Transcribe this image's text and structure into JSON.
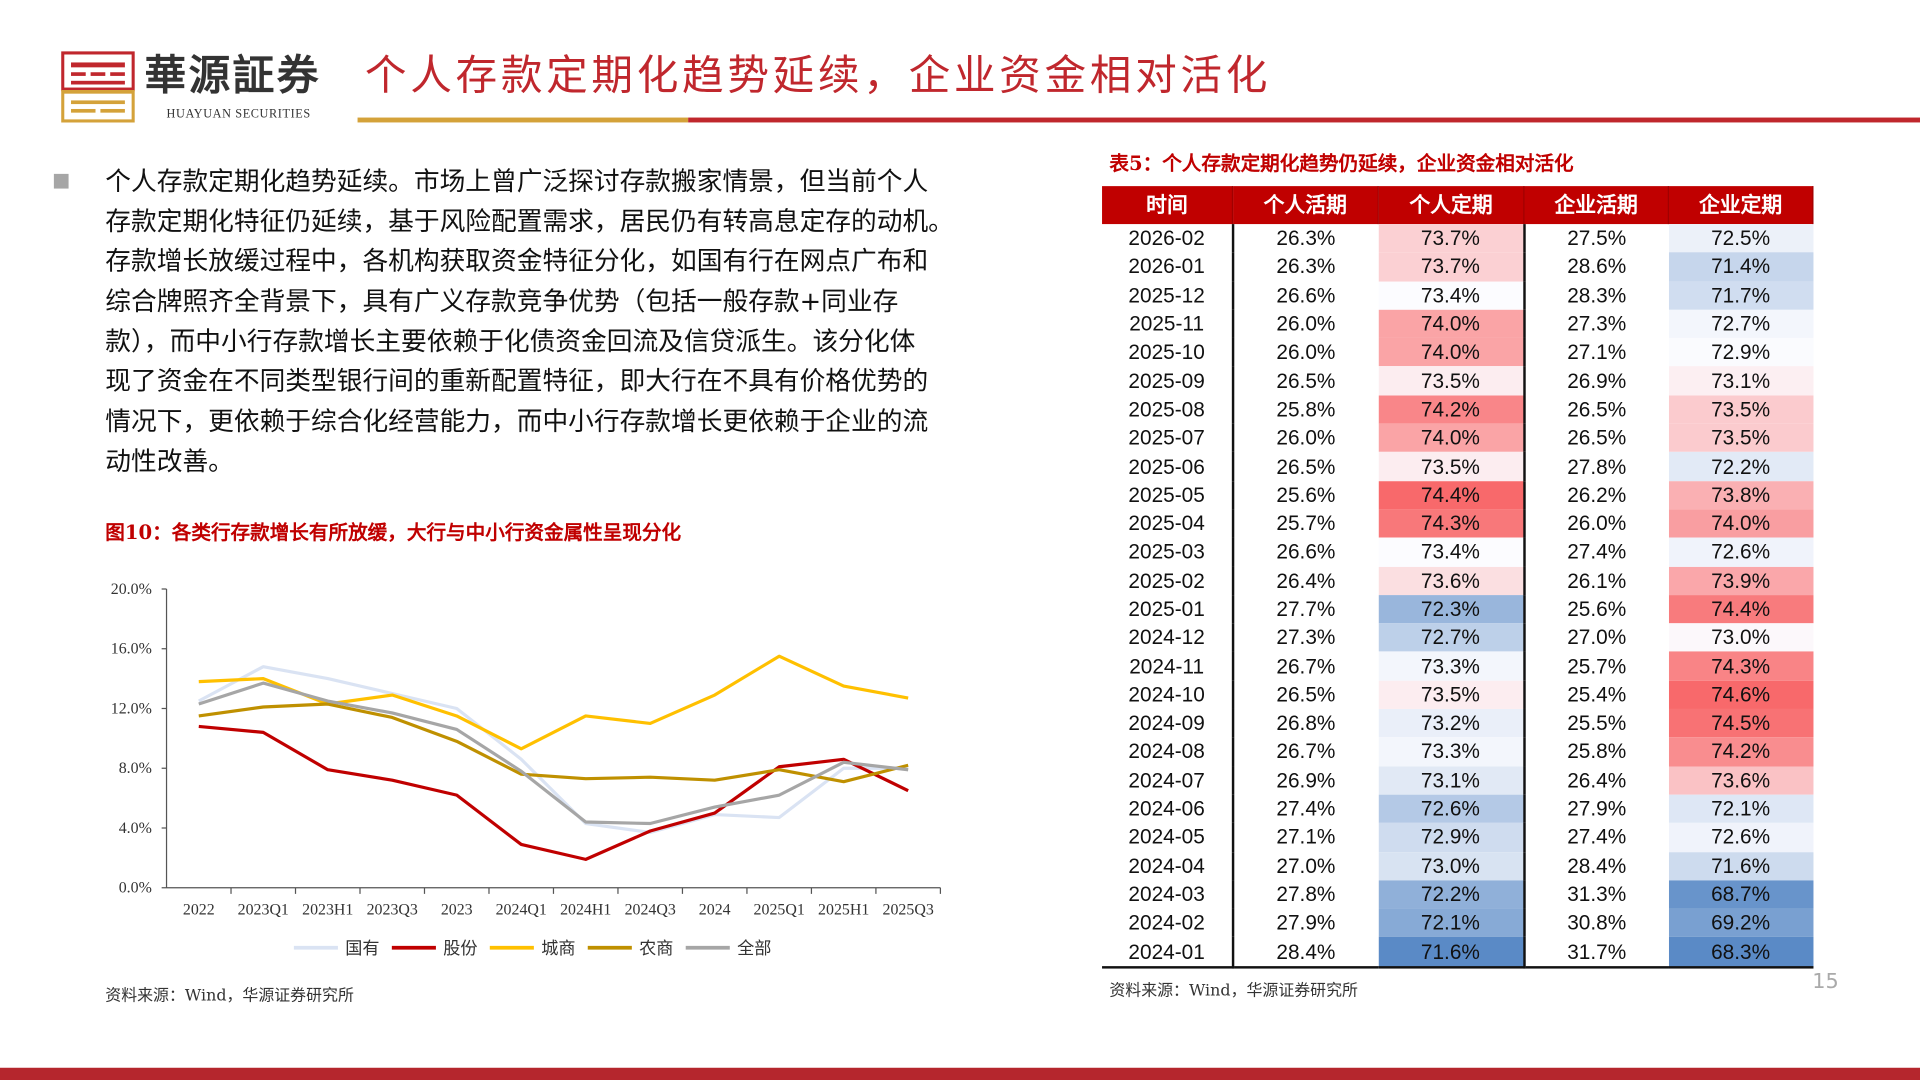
{
  "header": {
    "brand_cn": "華源証券",
    "brand_en": "HUAYUAN SECURITIES",
    "title": "个人存款定期化趋势延续，企业资金相对活化",
    "colors": {
      "brand_red": "#c0272d",
      "brand_gold": "#d4a23a"
    }
  },
  "body": {
    "lines": [
      "个人存款定期化趋势延续。市场上曾广泛探讨存款搬家情景，但当前个人",
      "存款定期化特征仍延续，基于风险配置需求，居民仍有转高息定存的动机。",
      "存款增长放缓过程中，各机构获取资金特征分化，如国有行在网点广布和",
      "综合牌照齐全背景下，具有广义存款竞争优势（包括一般存款+同业存",
      "款），而中小行存款增长主要依赖于化债资金回流及信贷派生。该分化体",
      "现了资金在不同类型银行间的重新配置特征，即大行在不具有价格优势的",
      "情况下，更依赖于综合化经营能力，而中小行存款增长更依赖于企业的流",
      "动性改善。"
    ]
  },
  "figure": {
    "title": "图10：各类行存款增长有所放缓，大行与中小行资金属性呈现分化",
    "source": "资料来源：Wind，华源证券研究所"
  },
  "chart_data": {
    "type": "line",
    "categories": [
      "2022",
      "2023Q1",
      "2023H1",
      "2023Q3",
      "2023",
      "2024Q1",
      "2024H1",
      "2024Q3",
      "2024",
      "2025Q1",
      "2025H1",
      "2025Q3"
    ],
    "ylim": [
      0,
      20
    ],
    "yticks": [
      "0.0%",
      "4.0%",
      "8.0%",
      "12.0%",
      "16.0%",
      "20.0%"
    ],
    "grid": false,
    "legend": "bottom",
    "series": [
      {
        "name": "国有",
        "color": "#dae3f3",
        "values": [
          12.5,
          14.8,
          14.0,
          13.0,
          12.0,
          8.6,
          4.3,
          3.7,
          4.9,
          4.7,
          8.0,
          8.0
        ]
      },
      {
        "name": "股份",
        "color": "#c00000",
        "values": [
          10.8,
          10.4,
          7.9,
          7.2,
          6.2,
          2.9,
          1.9,
          3.8,
          5.0,
          8.1,
          8.6,
          6.5
        ]
      },
      {
        "name": "城商",
        "color": "#ffc000",
        "values": [
          13.8,
          14.0,
          12.3,
          12.9,
          11.5,
          9.3,
          11.5,
          11.0,
          12.9,
          15.5,
          13.5,
          12.7
        ]
      },
      {
        "name": "农商",
        "color": "#bf9000",
        "values": [
          11.5,
          12.1,
          12.3,
          11.4,
          9.8,
          7.6,
          7.3,
          7.4,
          7.2,
          7.9,
          7.1,
          8.2
        ]
      },
      {
        "name": "全部",
        "color": "#a6a6a6",
        "values": [
          12.3,
          13.7,
          12.5,
          11.7,
          10.6,
          7.8,
          4.4,
          4.3,
          5.4,
          6.2,
          8.4,
          7.9
        ]
      }
    ]
  },
  "table": {
    "title": "表5：个人存款定期化趋势仍延续，企业资金相对活化",
    "headers": [
      "时间",
      "个人活期",
      "个人定期",
      "企业活期",
      "企业定期"
    ],
    "heat_colors": {
      "high": "#f8696b",
      "mid": "#fcfcff",
      "low": "#5a8ac6"
    },
    "rows": [
      [
        "2026-02",
        "26.3%",
        "73.7%",
        "27.5%",
        "72.5%"
      ],
      [
        "2026-01",
        "26.3%",
        "73.7%",
        "28.6%",
        "71.4%"
      ],
      [
        "2025-12",
        "26.6%",
        "73.4%",
        "28.3%",
        "71.7%"
      ],
      [
        "2025-11",
        "26.0%",
        "74.0%",
        "27.3%",
        "72.7%"
      ],
      [
        "2025-10",
        "26.0%",
        "74.0%",
        "27.1%",
        "72.9%"
      ],
      [
        "2025-09",
        "26.5%",
        "73.5%",
        "26.9%",
        "73.1%"
      ],
      [
        "2025-08",
        "25.8%",
        "74.2%",
        "26.5%",
        "73.5%"
      ],
      [
        "2025-07",
        "26.0%",
        "74.0%",
        "26.5%",
        "73.5%"
      ],
      [
        "2025-06",
        "26.5%",
        "73.5%",
        "27.8%",
        "72.2%"
      ],
      [
        "2025-05",
        "25.6%",
        "74.4%",
        "26.2%",
        "73.8%"
      ],
      [
        "2025-04",
        "25.7%",
        "74.3%",
        "26.0%",
        "74.0%"
      ],
      [
        "2025-03",
        "26.6%",
        "73.4%",
        "27.4%",
        "72.6%"
      ],
      [
        "2025-02",
        "26.4%",
        "73.6%",
        "26.1%",
        "73.9%"
      ],
      [
        "2025-01",
        "27.7%",
        "72.3%",
        "25.6%",
        "74.4%"
      ],
      [
        "2024-12",
        "27.3%",
        "72.7%",
        "27.0%",
        "73.0%"
      ],
      [
        "2024-11",
        "26.7%",
        "73.3%",
        "25.7%",
        "74.3%"
      ],
      [
        "2024-10",
        "26.5%",
        "73.5%",
        "25.4%",
        "74.6%"
      ],
      [
        "2024-09",
        "26.8%",
        "73.2%",
        "25.5%",
        "74.5%"
      ],
      [
        "2024-08",
        "26.7%",
        "73.3%",
        "25.8%",
        "74.2%"
      ],
      [
        "2024-07",
        "26.9%",
        "73.1%",
        "26.4%",
        "73.6%"
      ],
      [
        "2024-06",
        "27.4%",
        "72.6%",
        "27.9%",
        "72.1%"
      ],
      [
        "2024-05",
        "27.1%",
        "72.9%",
        "27.4%",
        "72.6%"
      ],
      [
        "2024-04",
        "27.0%",
        "73.0%",
        "28.4%",
        "71.6%"
      ],
      [
        "2024-03",
        "27.8%",
        "72.2%",
        "31.3%",
        "68.7%"
      ],
      [
        "2024-02",
        "27.9%",
        "72.1%",
        "30.8%",
        "69.2%"
      ],
      [
        "2024-01",
        "28.4%",
        "71.6%",
        "31.7%",
        "68.3%"
      ]
    ],
    "source": "资料来源：Wind，华源证券研究所"
  },
  "page_number": "15"
}
